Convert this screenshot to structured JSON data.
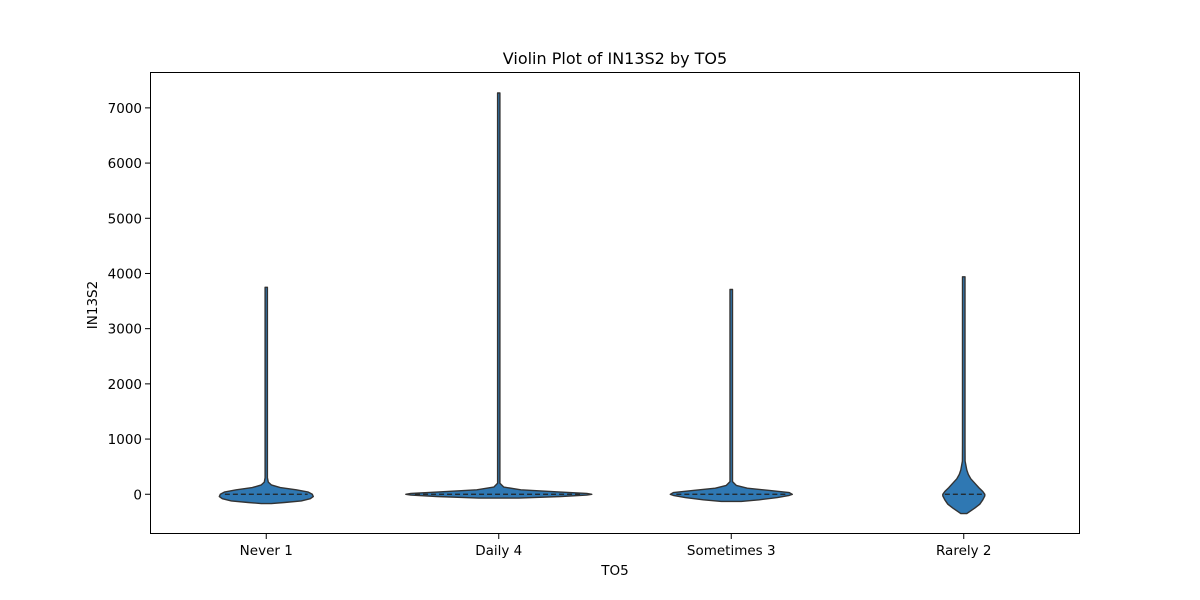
{
  "colors": {
    "violin_fill": "#2f78b3",
    "violin_edge": "#333333",
    "axes": "#000000"
  },
  "chart_data": {
    "type": "violin",
    "title": "Violin Plot of IN13S2 by TO5",
    "xlabel": "TO5",
    "ylabel": "IN13S2",
    "ylim": [
      -720,
      7650
    ],
    "yticks": [
      0,
      1000,
      2000,
      3000,
      4000,
      5000,
      6000,
      7000
    ],
    "ytick_labels": [
      "0",
      "1000",
      "2000",
      "3000",
      "4000",
      "5000",
      "6000",
      "7000"
    ],
    "categories": [
      "Never 1",
      "Daily 4",
      "Sometimes 3",
      "Rarely 2"
    ],
    "grid": false,
    "violins": [
      {
        "category": "Never 1",
        "min": -170,
        "max": 3750,
        "median": 0,
        "density_half_width": [
          [
            -170,
            5
          ],
          [
            -150,
            18
          ],
          [
            -120,
            35
          ],
          [
            -80,
            44
          ],
          [
            -40,
            47
          ],
          [
            0,
            46
          ],
          [
            40,
            42
          ],
          [
            80,
            30
          ],
          [
            120,
            14
          ],
          [
            170,
            5
          ],
          [
            220,
            2
          ],
          [
            300,
            1.2
          ],
          [
            3750,
            1.2
          ]
        ]
      },
      {
        "category": "Daily 4",
        "min": -70,
        "max": 7270,
        "median": 0,
        "density_half_width": [
          [
            -70,
            20
          ],
          [
            -40,
            62
          ],
          [
            -15,
            88
          ],
          [
            0,
            93
          ],
          [
            15,
            88
          ],
          [
            40,
            62
          ],
          [
            80,
            22
          ],
          [
            130,
            5
          ],
          [
            200,
            1.2
          ],
          [
            7270,
            1.2
          ]
        ]
      },
      {
        "category": "Sometimes 3",
        "min": -130,
        "max": 3710,
        "median": 0,
        "density_half_width": [
          [
            -130,
            10
          ],
          [
            -100,
            28
          ],
          [
            -60,
            46
          ],
          [
            -20,
            58
          ],
          [
            0,
            61
          ],
          [
            30,
            58
          ],
          [
            70,
            38
          ],
          [
            110,
            16
          ],
          [
            160,
            5
          ],
          [
            230,
            1.2
          ],
          [
            3710,
            1.2
          ]
        ]
      },
      {
        "category": "Rarely 2",
        "min": -350,
        "max": 3940,
        "median": 0,
        "density_half_width": [
          [
            -350,
            3
          ],
          [
            -300,
            7
          ],
          [
            -250,
            11
          ],
          [
            -180,
            16
          ],
          [
            -100,
            19
          ],
          [
            -30,
            21
          ],
          [
            0,
            21
          ],
          [
            50,
            19
          ],
          [
            120,
            15
          ],
          [
            200,
            11
          ],
          [
            280,
            7
          ],
          [
            360,
            4.5
          ],
          [
            440,
            3
          ],
          [
            600,
            1.4
          ],
          [
            900,
            1.2
          ],
          [
            3940,
            1.2
          ]
        ]
      }
    ]
  }
}
